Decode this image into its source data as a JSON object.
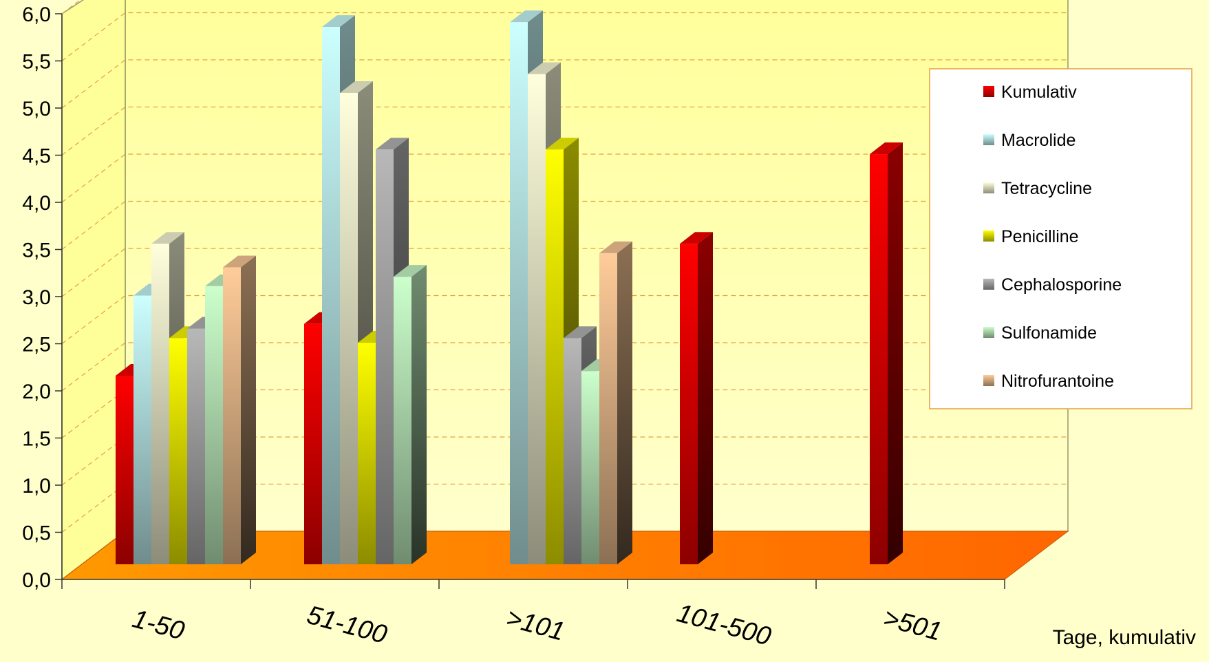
{
  "chart_data": {
    "type": "bar",
    "title": "",
    "xlabel": "Tage, kumulativ",
    "ylabel": "",
    "ylim": [
      0,
      6
    ],
    "y_ticks": [
      "0,0",
      "0,5",
      "1,0",
      "1,5",
      "2,0",
      "2,5",
      "3,0",
      "3,5",
      "4,0",
      "4,5",
      "5,0",
      "5,5",
      "6,0"
    ],
    "categories": [
      "1-50",
      "51-100",
      ">101",
      "101-500",
      ">501"
    ],
    "legend_position": "right",
    "grid": true,
    "series": [
      {
        "name": "Kumulativ",
        "color": "#ff0000",
        "values": [
          2.0,
          2.55,
          null,
          3.4,
          4.35
        ]
      },
      {
        "name": "Macrolide",
        "color": "#ccffff",
        "values": [
          2.85,
          5.7,
          5.75,
          null,
          null
        ]
      },
      {
        "name": "Tetracycline",
        "color": "#ffffdd",
        "values": [
          3.4,
          5.0,
          5.2,
          null,
          null
        ]
      },
      {
        "name": "Penicilline",
        "color": "#ffff00",
        "values": [
          2.4,
          2.35,
          4.4,
          null,
          null
        ]
      },
      {
        "name": "Cephalosporine",
        "color": "#b8b8b8",
        "values": [
          2.5,
          4.4,
          2.4,
          null,
          null
        ]
      },
      {
        "name": "Sulfonamide",
        "color": "#ccffcc",
        "values": [
          2.95,
          3.05,
          2.05,
          null,
          null
        ]
      },
      {
        "name": "Nitrofurantoine",
        "color": "#ffcc99",
        "values": [
          3.15,
          null,
          3.3,
          null,
          null
        ]
      }
    ]
  }
}
